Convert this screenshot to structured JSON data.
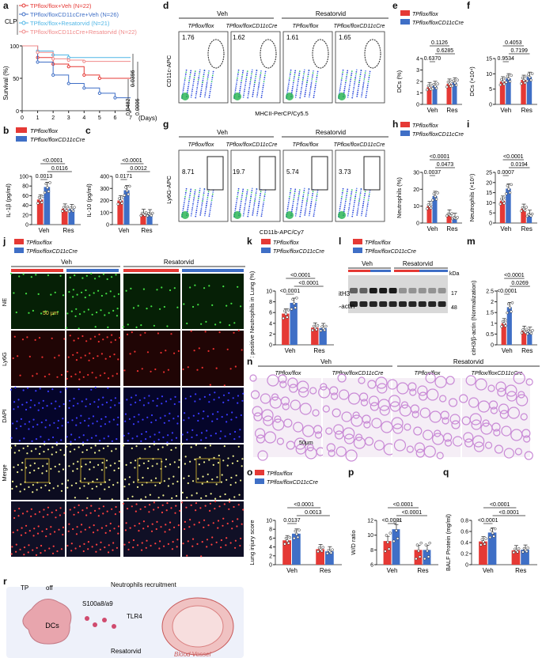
{
  "panels": {
    "a": {
      "letter": "a",
      "group": "CLP",
      "legend": [
        {
          "label": "TPflox/flox+Veh (N=22)",
          "color": "#e53935"
        },
        {
          "label": "TPflox/floxCD11cCre+Veh (N=26)",
          "color": "#3f6fc6"
        },
        {
          "label": "TPflox/flox+Resatorvid (N=21)",
          "color": "#4fb6e6"
        },
        {
          "label": "TPflox/floxCD11cCre+Resatorvid (N=22)",
          "color": "#f08a8a"
        }
      ],
      "ylabel": "Survival (%)",
      "xlabel": "(Days)",
      "pvals": [
        "0.0396",
        "0.0482",
        "0.0006"
      ]
    },
    "b": {
      "letter": "b",
      "ylabel": "IL-1β (pg/ml)",
      "pvals": [
        "0.0013",
        "0.0116",
        "<0.0001"
      ]
    },
    "c": {
      "letter": "c",
      "ylabel": "IL-10 (pg/ml)",
      "pvals": [
        "0.0171",
        "0.0012",
        "<0.0001"
      ]
    },
    "d": {
      "letter": "d",
      "groups": [
        "Veh",
        "Resatorvid"
      ],
      "cols": [
        "TPflox/flox",
        "TPflox/floxCD11cCre",
        "TPflox/flox",
        "TPflox/floxCD11cCre"
      ],
      "values": [
        "1.76",
        "1.62",
        "1.61",
        "1.65"
      ],
      "xlabel": "MHCII-PerCP/Cy5.5",
      "ylabel": "CD11c-APC"
    },
    "e": {
      "letter": "e",
      "ylabel": "DCs (%)",
      "pvals": [
        "0.6370",
        "0.6285",
        "0.1126"
      ]
    },
    "f": {
      "letter": "f",
      "ylabel": "DCs (×10⁴)",
      "pvals": [
        "0.9534",
        "0.7199",
        "0.4053"
      ]
    },
    "g": {
      "letter": "g",
      "groups": [
        "Veh",
        "Resatorvid"
      ],
      "cols": [
        "TPflox/flox",
        "TPflox/floxCD11cCre",
        "TPflox/flox",
        "TPflox/floxCD11cCre"
      ],
      "values": [
        "8.71",
        "19.7",
        "5.74",
        "3.73"
      ],
      "xlabel": "CD11b-APC/Cy7",
      "ylabel": "Ly6G-APC"
    },
    "h": {
      "letter": "h",
      "ylabel": "Neutrophils (%)",
      "pvals": [
        "0.0037",
        "0.0473",
        "<0.0001"
      ]
    },
    "i": {
      "letter": "i",
      "ylabel": "Neutrophils (×10⁵)",
      "pvals": [
        "0.0007",
        "0.0194",
        "<0.0001"
      ]
    },
    "j": {
      "letter": "j",
      "groups": [
        "Veh",
        "Resatorvid"
      ],
      "rows": [
        "NE",
        "Ly6G",
        "DAPI",
        "Merge"
      ],
      "scale1": "50 μm",
      "scale2": "25 μm"
    },
    "k": {
      "letter": "k",
      "ylabel": "NE positive Neutrophils in Lung (%)",
      "pvals": [
        "<0.0001",
        "<0.0001",
        "<0.0001"
      ]
    },
    "l": {
      "letter": "l",
      "groups": [
        "Veh",
        "Resatorvid"
      ],
      "kda": "kDa",
      "bands": [
        {
          "name": "citH3",
          "kda": "17"
        },
        {
          "name": "β-actin",
          "kda": "48"
        }
      ]
    },
    "m": {
      "letter": "m",
      "ylabel": "citH3/β-actin (Normalization)",
      "pvals": [
        "<0.0001",
        "0.0269",
        "<0.0001"
      ]
    },
    "n": {
      "letter": "n",
      "groups": [
        "Veh",
        "Resatorvid"
      ],
      "cols": [
        "TPflox/flox",
        "TPflox/floxCD11cCre",
        "TPflox/flox",
        "TPflox/floxCD11cCre"
      ],
      "scale": "50μm"
    },
    "o": {
      "letter": "o",
      "ylabel": "Lung injury score",
      "pvals": [
        "0.0137",
        "0.0013",
        "<0.0001"
      ]
    },
    "p": {
      "letter": "p",
      "ylabel": "W/D ratio",
      "pvals": [
        "<0.0001",
        "<0.0001",
        "<0.0001"
      ]
    },
    "q": {
      "letter": "q",
      "ylabel": "BALF Protein (mg/ml)",
      "pvals": [
        "<0.0001",
        "<0.0001",
        "<0.0001"
      ]
    },
    "r": {
      "letter": "r",
      "labels": {
        "tp": "TP",
        "off": "off",
        "dcs": "DCs",
        "s100": "S100a8/a9",
        "tlr4": "TLR4",
        "resatorvid": "Resatorvid",
        "recruit": "Neutrophils recruitment",
        "vessel": "Blood Vessel"
      }
    }
  },
  "legend_two": [
    "TPflox/flox",
    "TPflox/floxCD11cCre"
  ],
  "colors": {
    "red": "#e53935",
    "blue": "#3f6fc6"
  },
  "chart_data": [
    {
      "type": "line",
      "panel": "a",
      "ylabel": "Survival (%)",
      "xlabel": "(Days)",
      "ylim": [
        0,
        100
      ],
      "xlim": [
        0,
        7
      ],
      "series": [
        {
          "name": "TPflox/flox+Veh (N=22)",
          "x": [
            0,
            1,
            2,
            3,
            4,
            5,
            6,
            7
          ],
          "values": [
            100,
            82,
            72,
            68,
            55,
            50,
            50,
            50
          ]
        },
        {
          "name": "TPflox/floxCD11cCre+Veh (N=26)",
          "x": [
            0,
            1,
            2,
            3,
            4,
            5,
            6,
            7
          ],
          "values": [
            100,
            75,
            55,
            42,
            35,
            27,
            20,
            20
          ]
        },
        {
          "name": "TPflox/flox+Resatorvid (N=21)",
          "x": [
            0,
            1,
            2,
            3,
            4,
            5,
            6,
            7
          ],
          "values": [
            100,
            92,
            86,
            82,
            82,
            82,
            82,
            82
          ]
        },
        {
          "name": "TPflox/floxCD11cCre+Resatorvid (N=22)",
          "x": [
            0,
            1,
            2,
            3,
            4,
            5,
            6,
            7
          ],
          "values": [
            100,
            90,
            80,
            78,
            76,
            76,
            76,
            76
          ]
        }
      ]
    },
    {
      "type": "bar",
      "panel": "b",
      "categories": [
        "Veh",
        "Res"
      ],
      "ylim": [
        0,
        100
      ],
      "ticks": [
        0,
        20,
        40,
        60,
        80,
        100
      ],
      "series": [
        {
          "name": "TPflox/flox",
          "values": [
            52,
            33
          ]
        },
        {
          "name": "TPflox/floxCD11cCre",
          "values": [
            78,
            32
          ]
        }
      ]
    },
    {
      "type": "bar",
      "panel": "c",
      "categories": [
        "Veh",
        "Res"
      ],
      "ylim": [
        0,
        400
      ],
      "ticks": [
        0,
        100,
        200,
        300,
        400
      ],
      "series": [
        {
          "name": "TPflox/flox",
          "values": [
            200,
            88
          ]
        },
        {
          "name": "TPflox/floxCD11cCre",
          "values": [
            285,
            85
          ]
        }
      ]
    },
    {
      "type": "bar",
      "panel": "e",
      "categories": [
        "Veh",
        "Res"
      ],
      "ylim": [
        0,
        4
      ],
      "ticks": [
        0,
        1,
        2,
        3,
        4
      ],
      "series": [
        {
          "name": "TPflox/flox",
          "values": [
            1.5,
            1.8
          ]
        },
        {
          "name": "TPflox/floxCD11cCre",
          "values": [
            1.6,
            1.9
          ]
        }
      ]
    },
    {
      "type": "bar",
      "panel": "f",
      "categories": [
        "Veh",
        "Res"
      ],
      "ylim": [
        0,
        15
      ],
      "ticks": [
        0,
        5,
        10,
        15
      ],
      "series": [
        {
          "name": "TPflox/flox",
          "values": [
            7.5,
            8
          ]
        },
        {
          "name": "TPflox/floxCD11cCre",
          "values": [
            8.5,
            9
          ]
        }
      ]
    },
    {
      "type": "bar",
      "panel": "h",
      "categories": [
        "Veh",
        "Res"
      ],
      "ylim": [
        0,
        30
      ],
      "ticks": [
        0,
        10,
        20,
        30
      ],
      "series": [
        {
          "name": "TPflox/flox",
          "values": [
            10,
            5
          ]
        },
        {
          "name": "TPflox/floxCD11cCre",
          "values": [
            16,
            3
          ]
        }
      ]
    },
    {
      "type": "bar",
      "panel": "i",
      "categories": [
        "Veh",
        "Res"
      ],
      "ylim": [
        0,
        25
      ],
      "ticks": [
        0,
        5,
        10,
        15,
        20,
        25
      ],
      "series": [
        {
          "name": "TPflox/flox",
          "values": [
            11,
            7
          ]
        },
        {
          "name": "TPflox/floxCD11cCre",
          "values": [
            17,
            4
          ]
        }
      ]
    },
    {
      "type": "bar",
      "panel": "k",
      "categories": [
        "Veh",
        "Res"
      ],
      "ylim": [
        0,
        10
      ],
      "ticks": [
        0,
        2,
        4,
        6,
        8,
        10
      ],
      "series": [
        {
          "name": "TPflox/flox",
          "values": [
            5.8,
            3.2
          ]
        },
        {
          "name": "TPflox/floxCD11cCre",
          "values": [
            7.8,
            3.1
          ]
        }
      ]
    },
    {
      "type": "bar",
      "panel": "m",
      "categories": [
        "Veh",
        "Res"
      ],
      "ylim": [
        0,
        2.5
      ],
      "ticks": [
        0,
        0.5,
        1.0,
        1.5,
        2.0,
        2.5
      ],
      "series": [
        {
          "name": "TPflox/flox",
          "values": [
            1.0,
            0.65
          ]
        },
        {
          "name": "TPflox/floxCD11cCre",
          "values": [
            1.75,
            0.6
          ]
        }
      ]
    },
    {
      "type": "bar",
      "panel": "o",
      "categories": [
        "Veh",
        "Res"
      ],
      "ylim": [
        0,
        10
      ],
      "ticks": [
        0,
        2,
        4,
        6,
        8,
        10
      ],
      "series": [
        {
          "name": "TPflox/flox",
          "values": [
            5.5,
            3.5
          ]
        },
        {
          "name": "TPflox/floxCD11cCre",
          "values": [
            7,
            3
          ]
        }
      ]
    },
    {
      "type": "bar",
      "panel": "p",
      "categories": [
        "Veh",
        "Res"
      ],
      "ylim": [
        6,
        12
      ],
      "ticks": [
        6,
        8,
        10,
        12
      ],
      "series": [
        {
          "name": "TPflox/flox",
          "values": [
            9.2,
            8
          ]
        },
        {
          "name": "TPflox/floxCD11cCre",
          "values": [
            10.8,
            8
          ]
        }
      ]
    },
    {
      "type": "bar",
      "panel": "q",
      "categories": [
        "Veh",
        "Res"
      ],
      "ylim": [
        0,
        0.8
      ],
      "ticks": [
        0,
        0.2,
        0.4,
        0.6,
        0.8
      ],
      "series": [
        {
          "name": "TPflox/flox",
          "values": [
            0.42,
            0.26
          ]
        },
        {
          "name": "TPflox/floxCD11cCre",
          "values": [
            0.58,
            0.27
          ]
        }
      ]
    }
  ]
}
